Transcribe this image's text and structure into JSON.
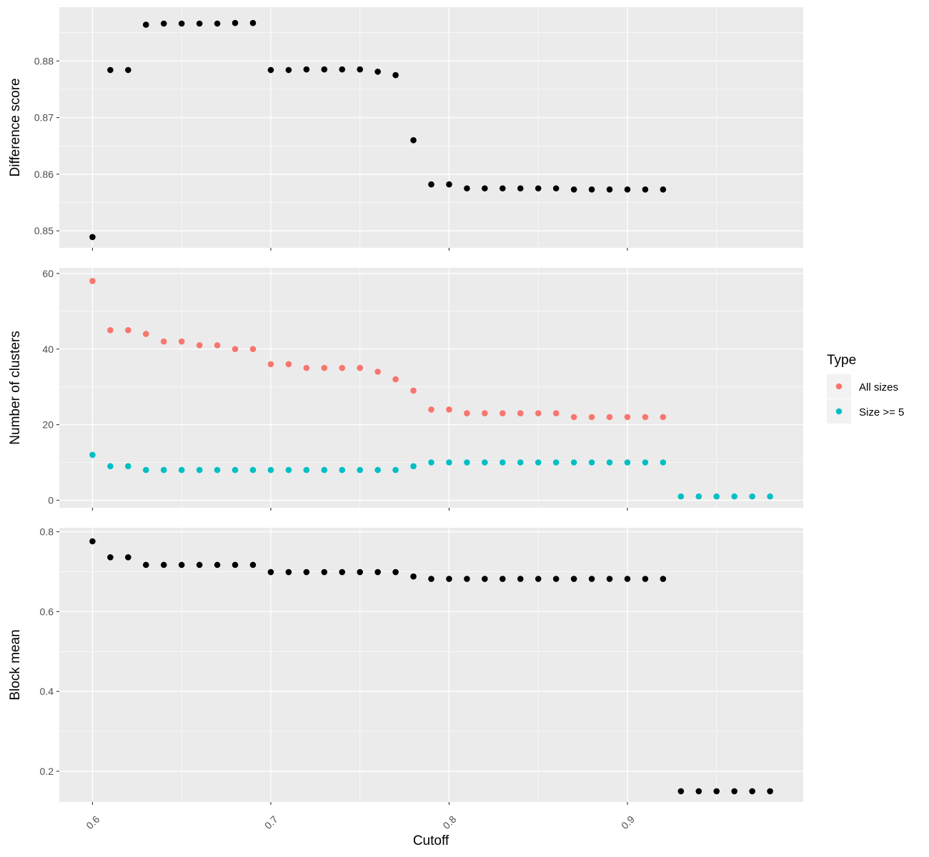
{
  "chart_data": {
    "type": "scatter",
    "xlabel": "Cutoff",
    "x_ticks": [
      "0.6",
      "0.7",
      "0.8",
      "0.9"
    ],
    "grid": true,
    "legend": {
      "title": "Type",
      "position": "right",
      "entries": [
        {
          "label": "All sizes",
          "color": "#F8766D"
        },
        {
          "label": "Size >= 5",
          "color": "#00BFC4"
        }
      ]
    },
    "panels": [
      {
        "ylabel": "Difference score",
        "ylim": [
          0.847,
          0.8895
        ],
        "y_ticks": [
          "0.85",
          "0.86",
          "0.87",
          "0.88"
        ],
        "series": [
          {
            "color": "#000000",
            "x": [
              0.6,
              0.61,
              0.62,
              0.63,
              0.64,
              0.65,
              0.66,
              0.67,
              0.68,
              0.69,
              0.7,
              0.71,
              0.72,
              0.73,
              0.74,
              0.75,
              0.76,
              0.77,
              0.78,
              0.79,
              0.8,
              0.81,
              0.82,
              0.83,
              0.84,
              0.85,
              0.86,
              0.87,
              0.88,
              0.89,
              0.9,
              0.91,
              0.92
            ],
            "y": [
              0.8489,
              0.8784,
              0.8784,
              0.8864,
              0.8866,
              0.8866,
              0.8866,
              0.8866,
              0.8867,
              0.8867,
              0.8784,
              0.8784,
              0.8785,
              0.8785,
              0.8785,
              0.8785,
              0.8781,
              0.8775,
              0.866,
              0.8582,
              0.8582,
              0.8575,
              0.8575,
              0.8575,
              0.8575,
              0.8575,
              0.8575,
              0.8573,
              0.8573,
              0.8573,
              0.8573,
              0.8573,
              0.8573
            ]
          }
        ]
      },
      {
        "ylabel": "Number of clusters",
        "ylim": [
          -2,
          61.5
        ],
        "y_ticks": [
          "0",
          "20",
          "40",
          "60"
        ],
        "series": [
          {
            "name": "All sizes",
            "color": "#F8766D",
            "x": [
              0.6,
              0.61,
              0.62,
              0.63,
              0.64,
              0.65,
              0.66,
              0.67,
              0.68,
              0.69,
              0.7,
              0.71,
              0.72,
              0.73,
              0.74,
              0.75,
              0.76,
              0.77,
              0.78,
              0.79,
              0.8,
              0.81,
              0.82,
              0.83,
              0.84,
              0.85,
              0.86,
              0.87,
              0.88,
              0.89,
              0.9,
              0.91,
              0.92
            ],
            "y": [
              58,
              45,
              45,
              44,
              42,
              42,
              41,
              41,
              40,
              40,
              36,
              36,
              35,
              35,
              35,
              35,
              34,
              32,
              29,
              24,
              24,
              23,
              23,
              23,
              23,
              23,
              23,
              22,
              22,
              22,
              22,
              22,
              22
            ]
          },
          {
            "name": "Size >= 5",
            "color": "#00BFC4",
            "x": [
              0.6,
              0.61,
              0.62,
              0.63,
              0.64,
              0.65,
              0.66,
              0.67,
              0.68,
              0.69,
              0.7,
              0.71,
              0.72,
              0.73,
              0.74,
              0.75,
              0.76,
              0.77,
              0.78,
              0.79,
              0.8,
              0.81,
              0.82,
              0.83,
              0.84,
              0.85,
              0.86,
              0.87,
              0.88,
              0.89,
              0.9,
              0.91,
              0.92,
              0.93,
              0.94,
              0.95,
              0.96,
              0.97,
              0.98
            ],
            "y": [
              12,
              9,
              9,
              8,
              8,
              8,
              8,
              8,
              8,
              8,
              8,
              8,
              8,
              8,
              8,
              8,
              8,
              8,
              9,
              10,
              10,
              10,
              10,
              10,
              10,
              10,
              10,
              10,
              10,
              10,
              10,
              10,
              10,
              1,
              1,
              1,
              1,
              1,
              1
            ]
          }
        ]
      },
      {
        "ylabel": "Block mean",
        "ylim": [
          0.123,
          0.81
        ],
        "y_ticks": [
          "0.2",
          "0.4",
          "0.6",
          "0.8"
        ],
        "series": [
          {
            "color": "#000000",
            "x": [
              0.6,
              0.61,
              0.62,
              0.63,
              0.64,
              0.65,
              0.66,
              0.67,
              0.68,
              0.69,
              0.7,
              0.71,
              0.72,
              0.73,
              0.74,
              0.75,
              0.76,
              0.77,
              0.78,
              0.79,
              0.8,
              0.81,
              0.82,
              0.83,
              0.84,
              0.85,
              0.86,
              0.87,
              0.88,
              0.89,
              0.9,
              0.91,
              0.92,
              0.93,
              0.94,
              0.95,
              0.96,
              0.97,
              0.98
            ],
            "y": [
              0.776,
              0.736,
              0.736,
              0.717,
              0.717,
              0.717,
              0.717,
              0.717,
              0.717,
              0.717,
              0.699,
              0.699,
              0.699,
              0.699,
              0.699,
              0.699,
              0.699,
              0.699,
              0.688,
              0.682,
              0.682,
              0.682,
              0.682,
              0.682,
              0.682,
              0.682,
              0.682,
              0.682,
              0.682,
              0.682,
              0.682,
              0.682,
              0.682,
              0.15,
              0.15,
              0.15,
              0.15,
              0.15,
              0.15
            ]
          }
        ]
      }
    ]
  }
}
